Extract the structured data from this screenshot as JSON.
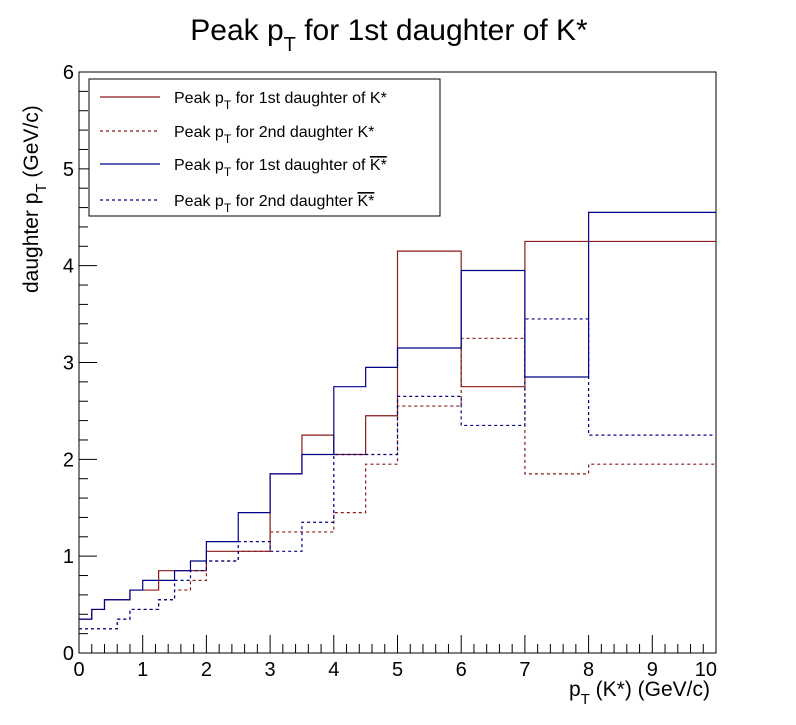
{
  "chart_data": {
    "type": "line",
    "title": {
      "main": "Peak p",
      "sub": "T",
      "rest": " for 1st daughter of K*"
    },
    "xlabel": {
      "main": "p",
      "sub": "T",
      "rest": " (K*) (GeV/c)"
    },
    "ylabel": {
      "main": "daughter p",
      "sub": "T",
      "rest": " (GeV/c)"
    },
    "xlim": [
      0,
      10
    ],
    "ylim": [
      0,
      6
    ],
    "x_ticks": [
      "0",
      "1",
      "2",
      "3",
      "4",
      "5",
      "6",
      "7",
      "8",
      "9",
      "10"
    ],
    "y_ticks": [
      "0",
      "1",
      "2",
      "3",
      "4",
      "5",
      "6"
    ],
    "grid": false,
    "legend_position": "top-left",
    "series": [
      {
        "name": "Peak pT for 1st daughter of K*",
        "legend": {
          "pre": "Peak p",
          "sub": "T",
          "post": " for 1st daughter of K*",
          "overline": ""
        },
        "color": "#8b1a1a",
        "dash": "solid",
        "edges": [
          0,
          0.2,
          0.4,
          0.6,
          0.8,
          1.0,
          1.25,
          1.5,
          1.75,
          2.0,
          2.5,
          3.0,
          3.5,
          4.0,
          4.5,
          5.0,
          6.0,
          7.0,
          8.0,
          10.0
        ],
        "values": [
          0.35,
          0.45,
          0.55,
          0.55,
          0.65,
          0.65,
          0.85,
          0.85,
          0.85,
          1.05,
          1.05,
          1.85,
          2.25,
          2.05,
          2.45,
          4.15,
          2.75,
          4.25,
          4.25
        ]
      },
      {
        "name": "Peak pT for 2nd daughter K*",
        "legend": {
          "pre": "Peak p",
          "sub": "T",
          "post": " for 2nd daughter K*",
          "overline": ""
        },
        "color": "#8b1a1a",
        "dash": "dashed",
        "edges": [
          0,
          0.2,
          0.4,
          0.6,
          0.8,
          1.0,
          1.25,
          1.5,
          1.75,
          2.0,
          2.5,
          3.0,
          3.5,
          4.0,
          4.5,
          5.0,
          6.0,
          7.0,
          8.0,
          10.0
        ],
        "values": [
          0.25,
          0.25,
          0.25,
          0.35,
          0.45,
          0.45,
          0.55,
          0.65,
          0.75,
          0.95,
          1.05,
          1.25,
          1.25,
          1.45,
          1.95,
          2.55,
          3.25,
          1.85,
          1.95
        ]
      },
      {
        "name": "Peak pT for 1st daughter of anti-K*",
        "legend": {
          "pre": "Peak p",
          "sub": "T",
          "post": " for 1st daughter of ",
          "overline": "K*"
        },
        "color": "#00008b",
        "dash": "solid",
        "edges": [
          0,
          0.2,
          0.4,
          0.6,
          0.8,
          1.0,
          1.25,
          1.5,
          1.75,
          2.0,
          2.5,
          3.0,
          3.5,
          4.0,
          4.5,
          5.0,
          6.0,
          7.0,
          8.0,
          10.0
        ],
        "values": [
          0.35,
          0.45,
          0.55,
          0.55,
          0.65,
          0.75,
          0.75,
          0.85,
          0.95,
          1.15,
          1.45,
          1.85,
          2.05,
          2.75,
          2.95,
          3.15,
          3.95,
          2.85,
          4.55
        ]
      },
      {
        "name": "Peak pT for 2nd daughter anti-K*",
        "legend": {
          "pre": "Peak p",
          "sub": "T",
          "post": " for 2nd daughter ",
          "overline": "K*"
        },
        "color": "#00008b",
        "dash": "dashed",
        "edges": [
          0,
          0.2,
          0.4,
          0.6,
          0.8,
          1.0,
          1.25,
          1.5,
          1.75,
          2.0,
          2.5,
          3.0,
          3.5,
          4.0,
          4.5,
          5.0,
          6.0,
          7.0,
          8.0,
          10.0
        ],
        "values": [
          0.25,
          0.25,
          0.25,
          0.35,
          0.45,
          0.45,
          0.55,
          0.75,
          0.85,
          0.95,
          1.15,
          1.05,
          1.35,
          2.05,
          2.05,
          2.65,
          2.35,
          3.45,
          2.25
        ]
      }
    ]
  }
}
